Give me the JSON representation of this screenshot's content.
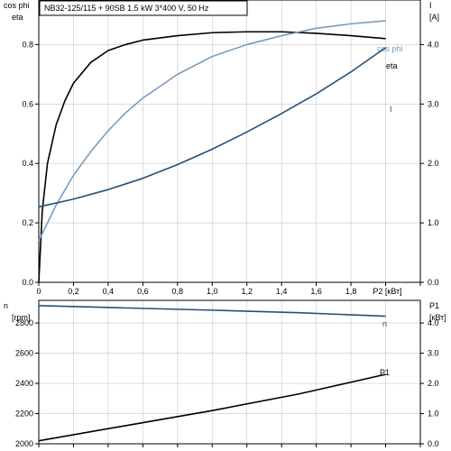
{
  "title": "NB32-125/115 + 90SB   1.5 kW   3*400 V, 50 Hz",
  "chart_data": [
    {
      "type": "line",
      "x_label": "P2 [кВт]",
      "x_ticks": [
        "0",
        "0,2",
        "0,4",
        "0,6",
        "0,8",
        "1,0",
        "1,2",
        "1,4",
        "1,6",
        "1,8"
      ],
      "xlim": [
        0,
        2.2
      ],
      "left_axis": {
        "label_line1": "cos phi",
        "label_line2": "eta",
        "ticks": [
          "0.0",
          "0.2",
          "0.4",
          "0.6",
          "0.8"
        ],
        "lim": [
          0,
          0.95
        ]
      },
      "right_axis": {
        "label_line1": "I",
        "label_line2": "[A]",
        "ticks": [
          "0.0",
          "1.0",
          "2.0",
          "3.0",
          "4.0"
        ],
        "lim": [
          0,
          4.75
        ]
      },
      "grid": true,
      "series": [
        {
          "name": "eta",
          "axis": "left",
          "color": "#000000",
          "x": [
            0,
            0.02,
            0.05,
            0.1,
            0.15,
            0.2,
            0.3,
            0.4,
            0.5,
            0.6,
            0.8,
            1.0,
            1.2,
            1.4,
            1.6,
            1.8,
            2.0
          ],
          "y": [
            0,
            0.24,
            0.4,
            0.53,
            0.61,
            0.67,
            0.74,
            0.78,
            0.8,
            0.815,
            0.83,
            0.84,
            0.843,
            0.843,
            0.838,
            0.83,
            0.82
          ]
        },
        {
          "name": "cos phi",
          "axis": "left",
          "color": "#7a9cbc",
          "x": [
            0,
            0.05,
            0.1,
            0.2,
            0.3,
            0.4,
            0.5,
            0.6,
            0.8,
            1.0,
            1.2,
            1.4,
            1.6,
            1.8,
            2.0
          ],
          "y": [
            0.14,
            0.2,
            0.26,
            0.36,
            0.44,
            0.51,
            0.57,
            0.62,
            0.7,
            0.76,
            0.8,
            0.83,
            0.855,
            0.87,
            0.88
          ]
        },
        {
          "name": "I",
          "axis": "right",
          "color": "#244f78",
          "x": [
            0,
            0.2,
            0.4,
            0.6,
            0.8,
            1.0,
            1.2,
            1.4,
            1.6,
            1.8,
            2.0
          ],
          "y": [
            1.27,
            1.4,
            1.56,
            1.75,
            1.98,
            2.24,
            2.53,
            2.84,
            3.17,
            3.54,
            3.95
          ]
        }
      ]
    },
    {
      "type": "line",
      "x_label": "",
      "xlim": [
        0,
        2.2
      ],
      "left_axis": {
        "label_line1": "n",
        "label_line2": "[rpm]",
        "ticks": [
          "2000",
          "2200",
          "2400",
          "2600",
          "2800"
        ],
        "lim": [
          2000,
          2950
        ]
      },
      "right_axis": {
        "label_line1": "P1",
        "label_line2": "[кВт]",
        "ticks": [
          "0.0",
          "1.0",
          "2.0",
          "3.0",
          "4.0"
        ],
        "lim": [
          0,
          4.75
        ]
      },
      "grid": true,
      "series": [
        {
          "name": "n",
          "axis": "left",
          "color": "#244f78",
          "x": [
            0,
            0.5,
            1.0,
            1.5,
            2.0
          ],
          "y": [
            2915,
            2900,
            2885,
            2868,
            2845
          ]
        },
        {
          "name": "P1",
          "axis": "right",
          "color": "#000000",
          "x": [
            0,
            0.5,
            1.0,
            1.5,
            2.0
          ],
          "y": [
            0.1,
            0.6,
            1.1,
            1.65,
            2.3
          ]
        }
      ]
    }
  ]
}
